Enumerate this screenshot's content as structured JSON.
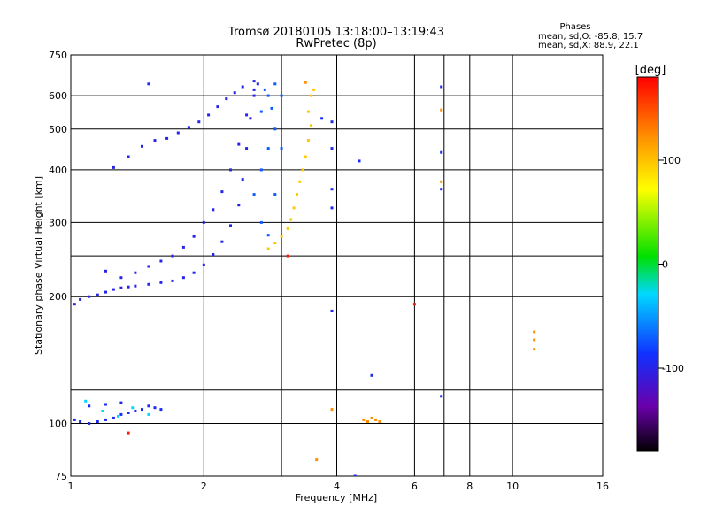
{
  "chart_data": {
    "type": "scatter",
    "title_line1": "Tromsø 20180105 13:18:00–13:19:43",
    "title_line2": "RwPretec (8p)",
    "stats": {
      "heading": "Phases",
      "line1": "mean, sd,O: -85.8, 15.7",
      "line2": "mean, sd,X:  88.9, 22.1"
    },
    "xlabel": "Frequency [MHz]",
    "ylabel": "Stationary phase Virtual Height [km]",
    "x_scale": "log2",
    "y_scale": "log",
    "xlim": [
      1,
      16
    ],
    "ylim": [
      75,
      750
    ],
    "x_ticks": [
      1,
      2,
      4,
      6,
      8,
      10,
      16
    ],
    "x_tick_labels": [
      "1",
      "2",
      "4",
      "6",
      "8",
      "10",
      "16"
    ],
    "x_grid": [
      1,
      2,
      3,
      4,
      6,
      7,
      8,
      10,
      16
    ],
    "y_ticks": [
      75,
      100,
      200,
      300,
      400,
      500,
      600,
      750
    ],
    "y_tick_labels": [
      "75",
      "100",
      "200",
      "300",
      "400",
      "500",
      "600",
      "750"
    ],
    "y_grid": [
      100,
      120,
      200,
      250,
      300,
      400,
      500,
      600
    ],
    "grid": true,
    "colorbar": {
      "label": "[deg]",
      "range": [
        -180,
        180
      ],
      "ticks": [
        100,
        0,
        -100
      ],
      "tick_labels": [
        "100",
        "0",
        "-100"
      ]
    },
    "series": [
      {
        "trace": "lower-E",
        "phase": -95,
        "points": [
          [
            1.02,
            102
          ],
          [
            1.05,
            101
          ],
          [
            1.1,
            100
          ],
          [
            1.15,
            101
          ],
          [
            1.2,
            102
          ],
          [
            1.25,
            103
          ],
          [
            1.3,
            105
          ],
          [
            1.35,
            106
          ],
          [
            1.4,
            107
          ],
          [
            1.45,
            108
          ],
          [
            1.5,
            110
          ],
          [
            1.55,
            109
          ],
          [
            1.6,
            108
          ],
          [
            1.1,
            110
          ],
          [
            1.2,
            111
          ],
          [
            1.3,
            112
          ]
        ]
      },
      {
        "trace": "lower-E-scatter",
        "phase": -30,
        "points": [
          [
            1.08,
            113
          ],
          [
            1.18,
            107
          ],
          [
            1.28,
            104
          ],
          [
            1.38,
            109
          ],
          [
            1.5,
            105
          ]
        ]
      },
      {
        "trace": "O-trace-low",
        "phase": -100,
        "points": [
          [
            1.02,
            192
          ],
          [
            1.05,
            197
          ],
          [
            1.1,
            200
          ],
          [
            1.15,
            202
          ],
          [
            1.2,
            205
          ],
          [
            1.25,
            208
          ],
          [
            1.3,
            210
          ],
          [
            1.35,
            211
          ],
          [
            1.4,
            212
          ],
          [
            1.5,
            214
          ],
          [
            1.6,
            216
          ],
          [
            1.7,
            218
          ],
          [
            1.8,
            222
          ],
          [
            1.9,
            228
          ],
          [
            2.0,
            238
          ],
          [
            2.1,
            252
          ],
          [
            2.2,
            270
          ],
          [
            2.3,
            295
          ],
          [
            2.4,
            330
          ],
          [
            2.45,
            380
          ],
          [
            2.5,
            450
          ],
          [
            2.55,
            530
          ],
          [
            2.6,
            600
          ],
          [
            2.65,
            640
          ]
        ]
      },
      {
        "trace": "O-trace-high",
        "phase": -100,
        "points": [
          [
            1.2,
            230
          ],
          [
            1.3,
            222
          ],
          [
            1.4,
            228
          ],
          [
            1.5,
            236
          ],
          [
            1.6,
            243
          ],
          [
            1.7,
            250
          ],
          [
            1.8,
            262
          ],
          [
            1.9,
            278
          ],
          [
            2.0,
            300
          ],
          [
            2.1,
            322
          ],
          [
            2.2,
            355
          ],
          [
            2.3,
            400
          ],
          [
            2.4,
            460
          ],
          [
            2.5,
            540
          ],
          [
            2.6,
            620
          ]
        ]
      },
      {
        "trace": "upper-spread-F",
        "phase": -100,
        "points": [
          [
            1.25,
            405
          ],
          [
            1.35,
            430
          ],
          [
            1.45,
            455
          ],
          [
            1.55,
            470
          ],
          [
            1.65,
            475
          ],
          [
            1.75,
            490
          ],
          [
            1.85,
            505
          ],
          [
            1.95,
            520
          ],
          [
            2.05,
            540
          ],
          [
            2.15,
            565
          ],
          [
            2.25,
            590
          ],
          [
            2.35,
            610
          ],
          [
            2.45,
            630
          ],
          [
            2.6,
            650
          ]
        ]
      },
      {
        "trace": "spread-core",
        "phase": -75,
        "points": [
          [
            2.6,
            350
          ],
          [
            2.7,
            400
          ],
          [
            2.8,
            450
          ],
          [
            2.9,
            500
          ],
          [
            2.7,
            550
          ],
          [
            2.8,
            600
          ],
          [
            2.9,
            640
          ],
          [
            3.0,
            600
          ],
          [
            2.9,
            350
          ],
          [
            2.7,
            300
          ],
          [
            2.8,
            280
          ],
          [
            3.0,
            450
          ],
          [
            2.75,
            620
          ],
          [
            2.85,
            560
          ]
        ]
      },
      {
        "trace": "X-trace",
        "phase": 95,
        "points": [
          [
            2.8,
            260
          ],
          [
            2.9,
            268
          ],
          [
            3.0,
            278
          ],
          [
            3.1,
            290
          ],
          [
            3.15,
            305
          ],
          [
            3.2,
            325
          ],
          [
            3.25,
            350
          ],
          [
            3.3,
            375
          ],
          [
            3.35,
            400
          ],
          [
            3.4,
            430
          ],
          [
            3.45,
            470
          ],
          [
            3.5,
            510
          ],
          [
            3.45,
            550
          ],
          [
            3.5,
            600
          ],
          [
            3.55,
            620
          ]
        ]
      },
      {
        "trace": "isolated",
        "phase": -95,
        "points": [
          [
            1.5,
            640
          ],
          [
            3.7,
            530
          ],
          [
            3.9,
            520
          ],
          [
            3.9,
            450
          ],
          [
            3.9,
            360
          ],
          [
            3.9,
            325
          ],
          [
            4.5,
            420
          ],
          [
            6.9,
            630
          ],
          [
            6.9,
            440
          ],
          [
            6.9,
            360
          ],
          [
            4.8,
            130
          ],
          [
            3.9,
            185
          ],
          [
            6.9,
            116
          ],
          [
            4.4,
            75
          ]
        ]
      },
      {
        "trace": "isolated-hot",
        "phase": 120,
        "points": [
          [
            4.6,
            102
          ],
          [
            4.7,
            101
          ],
          [
            4.8,
            103
          ],
          [
            4.9,
            102
          ],
          [
            5.0,
            101
          ],
          [
            3.9,
            108
          ],
          [
            3.6,
            82
          ],
          [
            11.2,
            150
          ],
          [
            11.2,
            158
          ],
          [
            11.2,
            165
          ],
          [
            3.4,
            645
          ],
          [
            6.9,
            555
          ],
          [
            6.9,
            375
          ]
        ]
      },
      {
        "trace": "isolated-red",
        "phase": 170,
        "points": [
          [
            1.35,
            95
          ],
          [
            6.0,
            192
          ],
          [
            3.1,
            250
          ]
        ]
      }
    ]
  }
}
